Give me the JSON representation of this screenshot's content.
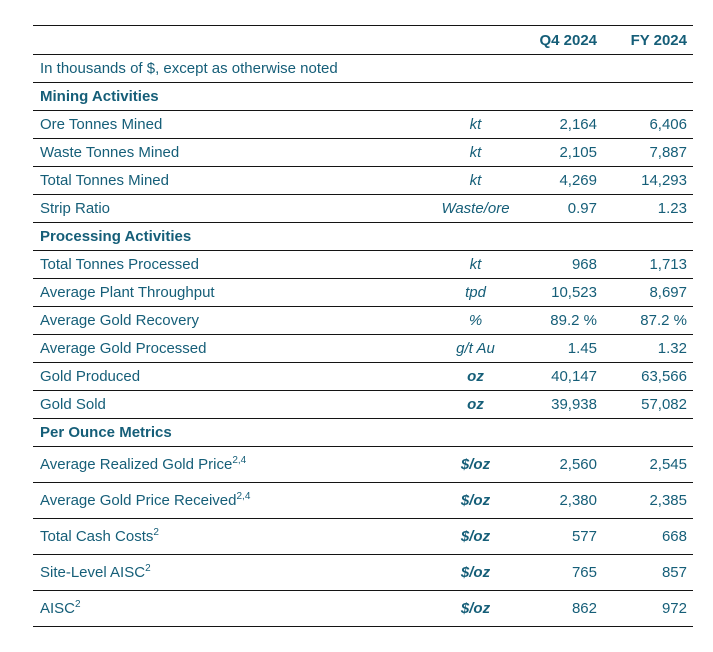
{
  "colors": {
    "text_teal": "#155e78",
    "rule_line": "#141414",
    "background": "#ffffff"
  },
  "table": {
    "columns": {
      "q4": "Q4 2024",
      "fy": "FY 2024"
    },
    "note": "In thousands of $, except as otherwise noted",
    "sections": [
      {
        "title": "Mining Activities",
        "tall": false,
        "rows": [
          {
            "label": "Ore Tonnes Mined",
            "sup": "",
            "unit": "kt",
            "unit_bold": false,
            "q4": "2,164",
            "fy": "6,406"
          },
          {
            "label": "Waste Tonnes Mined",
            "sup": "",
            "unit": "kt",
            "unit_bold": false,
            "q4": "2,105",
            "fy": "7,887"
          },
          {
            "label": "Total Tonnes Mined",
            "sup": "",
            "unit": "kt",
            "unit_bold": false,
            "q4": "4,269",
            "fy": "14,293"
          },
          {
            "label": "Strip Ratio",
            "sup": "",
            "unit": "Waste/ore",
            "unit_bold": false,
            "q4": "0.97",
            "fy": "1.23"
          }
        ]
      },
      {
        "title": "Processing Activities",
        "tall": false,
        "rows": [
          {
            "label": "Total Tonnes Processed",
            "sup": "",
            "unit": "kt",
            "unit_bold": false,
            "q4": "968",
            "fy": "1,713"
          },
          {
            "label": "Average Plant Throughput",
            "sup": "",
            "unit": "tpd",
            "unit_bold": false,
            "q4": "10,523",
            "fy": "8,697"
          },
          {
            "label": "Average Gold Recovery",
            "sup": "",
            "unit": "%",
            "unit_bold": false,
            "q4": "89.2 %",
            "fy": "87.2 %"
          },
          {
            "label": "Average Gold Processed",
            "sup": "",
            "unit": "g/t Au",
            "unit_bold": false,
            "q4": "1.45",
            "fy": "1.32"
          },
          {
            "label": "Gold Produced",
            "sup": "",
            "unit": "oz",
            "unit_bold": true,
            "q4": "40,147",
            "fy": "63,566"
          },
          {
            "label": "Gold Sold",
            "sup": "",
            "unit": "oz",
            "unit_bold": true,
            "q4": "39,938",
            "fy": "57,082"
          }
        ]
      },
      {
        "title": "Per Ounce Metrics",
        "tall": true,
        "rows": [
          {
            "label": "Average Realized Gold Price",
            "sup": "2,4",
            "unit": "$/oz",
            "unit_bold": true,
            "q4": "2,560",
            "fy": "2,545"
          },
          {
            "label": "Average Gold Price Received",
            "sup": "2,4",
            "unit": "$/oz",
            "unit_bold": true,
            "q4": "2,380",
            "fy": "2,385"
          },
          {
            "label": "Total Cash Costs",
            "sup": "2",
            "unit": "$/oz",
            "unit_bold": true,
            "q4": "577",
            "fy": "668"
          },
          {
            "label": "Site-Level AISC",
            "sup": "2",
            "unit": "$/oz",
            "unit_bold": true,
            "q4": "765",
            "fy": "857"
          },
          {
            "label": "AISC",
            "sup": "2",
            "unit": "$/oz",
            "unit_bold": true,
            "q4": "862",
            "fy": "972"
          }
        ]
      }
    ]
  }
}
